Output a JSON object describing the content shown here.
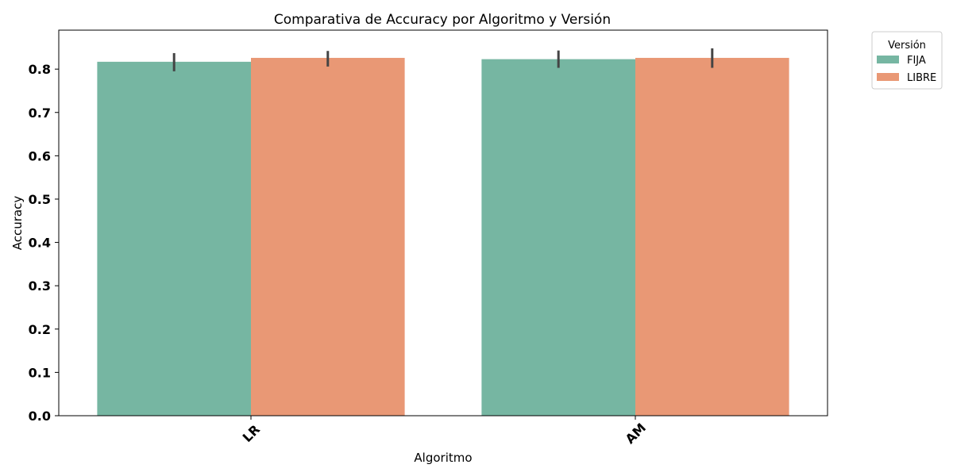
{
  "chart_data": {
    "type": "bar",
    "title": "Comparativa de Accuracy por Algoritmo y Versión",
    "xlabel": "Algoritmo",
    "ylabel": "Accuracy",
    "categories": [
      "LR",
      "AM"
    ],
    "series": [
      {
        "name": "FIJA",
        "color": "#76b6a2",
        "values": [
          0.817,
          0.823
        ],
        "err_low": [
          0.795,
          0.803
        ],
        "err_high": [
          0.837,
          0.843
        ]
      },
      {
        "name": "LIBRE",
        "color": "#e99875",
        "values": [
          0.826,
          0.826
        ],
        "err_low": [
          0.806,
          0.803
        ],
        "err_high": [
          0.842,
          0.848
        ]
      }
    ],
    "ylim": [
      0,
      0.89
    ],
    "yticks": [
      "0.0",
      "0.1",
      "0.2",
      "0.3",
      "0.4",
      "0.5",
      "0.6",
      "0.7",
      "0.8"
    ],
    "grid": false,
    "legend": {
      "title": "Versión",
      "placement": "outside-top-right"
    }
  }
}
